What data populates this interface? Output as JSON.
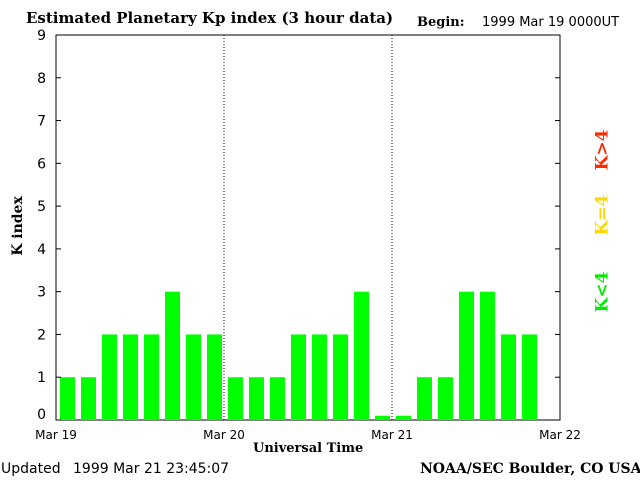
{
  "header": {
    "title": "Estimated Planetary Kp index (3 hour data)",
    "begin_label": "Begin:",
    "begin_value": "1999 Mar 19 0000UT"
  },
  "footer": {
    "updated_label": "Updated",
    "updated_value": "1999 Mar 21 23:45:07",
    "credit": "NOAA/SEC Boulder, CO USA"
  },
  "legend": [
    {
      "label": "K>4",
      "color": "#ff2a00"
    },
    {
      "label": "K=4",
      "color": "#ffd700"
    },
    {
      "label": "K<4",
      "color": "#00ee00"
    }
  ],
  "colors": {
    "low": "#00ff00",
    "eq": "#ffd700",
    "high": "#ff2a00"
  },
  "chart_data": {
    "type": "bar",
    "xlabel": "Universal Time",
    "ylabel": "K index",
    "ylim": [
      0,
      9
    ],
    "yticks": [
      "0",
      "1",
      "2",
      "3",
      "4",
      "5",
      "6",
      "7",
      "8",
      "9"
    ],
    "day_labels": [
      "Mar 19",
      "Mar 20",
      "Mar 21",
      "Mar 22"
    ],
    "day_dividers": true,
    "values": [
      1,
      1,
      2,
      2,
      2,
      3,
      2,
      2,
      1,
      1,
      1,
      2,
      2,
      2,
      3,
      0.1,
      0.1,
      1,
      1,
      3,
      3,
      2,
      2
    ]
  }
}
